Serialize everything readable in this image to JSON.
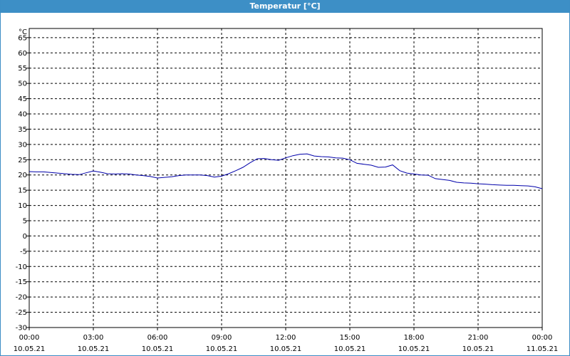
{
  "window": {
    "title": "Temperatur [°C]"
  },
  "chart_data": {
    "type": "line",
    "title": "Temperatur [°C]",
    "unit_label": "°C",
    "ylim": [
      -30,
      68
    ],
    "yticks": [
      -30,
      -25,
      -20,
      -15,
      -10,
      -5,
      0,
      5,
      10,
      15,
      20,
      25,
      30,
      35,
      40,
      45,
      50,
      55,
      60,
      65
    ],
    "xlim": [
      "10.05.21 00:00",
      "11.05.21 00:00"
    ],
    "xticks": [
      {
        "time": "00:00",
        "date": "10.05.21"
      },
      {
        "time": "03:00",
        "date": "10.05.21"
      },
      {
        "time": "06:00",
        "date": "10.05.21"
      },
      {
        "time": "09:00",
        "date": "10.05.21"
      },
      {
        "time": "12:00",
        "date": "10.05.21"
      },
      {
        "time": "15:00",
        "date": "10.05.21"
      },
      {
        "time": "18:00",
        "date": "10.05.21"
      },
      {
        "time": "21:00",
        "date": "10.05.21"
      },
      {
        "time": "00:00",
        "date": "11.05.21"
      }
    ],
    "grid": true,
    "series": [
      {
        "color": "#0000aa",
        "points": [
          [
            "10.05.21 00:00",
            21.1
          ],
          [
            "10.05.21 00:20",
            21.0
          ],
          [
            "10.05.21 00:40",
            21.0
          ],
          [
            "10.05.21 01:00",
            20.8
          ],
          [
            "10.05.21 01:20",
            20.6
          ],
          [
            "10.05.21 01:40",
            20.4
          ],
          [
            "10.05.21 02:00",
            20.2
          ],
          [
            "10.05.21 02:20",
            20.1
          ],
          [
            "10.05.21 02:40",
            20.7
          ],
          [
            "10.05.21 03:00",
            21.3
          ],
          [
            "10.05.21 03:20",
            20.9
          ],
          [
            "10.05.21 03:40",
            20.4
          ],
          [
            "10.05.21 04:00",
            20.3
          ],
          [
            "10.05.21 04:20",
            20.4
          ],
          [
            "10.05.21 04:40",
            20.3
          ],
          [
            "10.05.21 05:00",
            20.0
          ],
          [
            "10.05.21 05:20",
            19.8
          ],
          [
            "10.05.21 05:40",
            19.5
          ],
          [
            "10.05.21 06:00",
            19.0
          ],
          [
            "10.05.21 06:20",
            19.2
          ],
          [
            "10.05.21 06:40",
            19.4
          ],
          [
            "10.05.21 07:00",
            19.8
          ],
          [
            "10.05.21 07:20",
            20.0
          ],
          [
            "10.05.21 07:40",
            20.0
          ],
          [
            "10.05.21 08:00",
            20.0
          ],
          [
            "10.05.21 08:20",
            19.8
          ],
          [
            "10.05.21 08:40",
            19.3
          ],
          [
            "10.05.21 09:00",
            19.6
          ],
          [
            "10.05.21 09:20",
            20.4
          ],
          [
            "10.05.21 09:40",
            21.4
          ],
          [
            "10.05.21 10:00",
            22.5
          ],
          [
            "10.05.21 10:20",
            24.0
          ],
          [
            "10.05.21 10:40",
            25.3
          ],
          [
            "10.05.21 11:00",
            25.4
          ],
          [
            "10.05.21 11:20",
            25.0
          ],
          [
            "10.05.21 11:40",
            24.8
          ],
          [
            "10.05.21 12:00",
            25.6
          ],
          [
            "10.05.21 12:20",
            26.3
          ],
          [
            "10.05.21 12:40",
            26.8
          ],
          [
            "10.05.21 13:00",
            26.9
          ],
          [
            "10.05.21 13:20",
            26.2
          ],
          [
            "10.05.21 13:40",
            26.0
          ],
          [
            "10.05.21 14:00",
            25.9
          ],
          [
            "10.05.21 14:20",
            25.6
          ],
          [
            "10.05.21 14:40",
            25.5
          ],
          [
            "10.05.21 15:00",
            25.0
          ],
          [
            "10.05.21 15:20",
            23.8
          ],
          [
            "10.05.21 15:40",
            23.5
          ],
          [
            "10.05.21 16:00",
            23.2
          ],
          [
            "10.05.21 16:20",
            22.5
          ],
          [
            "10.05.21 16:40",
            22.6
          ],
          [
            "10.05.21 17:00",
            23.3
          ],
          [
            "10.05.21 17:20",
            21.4
          ],
          [
            "10.05.21 17:40",
            20.6
          ],
          [
            "10.05.21 18:00",
            20.3
          ],
          [
            "10.05.21 18:20",
            20.0
          ],
          [
            "10.05.21 18:40",
            19.9
          ],
          [
            "10.05.21 19:00",
            18.8
          ],
          [
            "10.05.21 19:20",
            18.5
          ],
          [
            "10.05.21 19:40",
            18.2
          ],
          [
            "10.05.21 20:00",
            17.6
          ],
          [
            "10.05.21 20:20",
            17.4
          ],
          [
            "10.05.21 20:40",
            17.3
          ],
          [
            "10.05.21 21:00",
            17.1
          ],
          [
            "10.05.21 21:20",
            17.0
          ],
          [
            "10.05.21 21:40",
            16.8
          ],
          [
            "10.05.21 22:00",
            16.7
          ],
          [
            "10.05.21 22:20",
            16.6
          ],
          [
            "10.05.21 22:40",
            16.6
          ],
          [
            "10.05.21 23:00",
            16.5
          ],
          [
            "10.05.21 23:20",
            16.4
          ],
          [
            "10.05.21 23:40",
            16.1
          ],
          [
            "11.05.21 00:00",
            15.5
          ]
        ]
      }
    ]
  }
}
